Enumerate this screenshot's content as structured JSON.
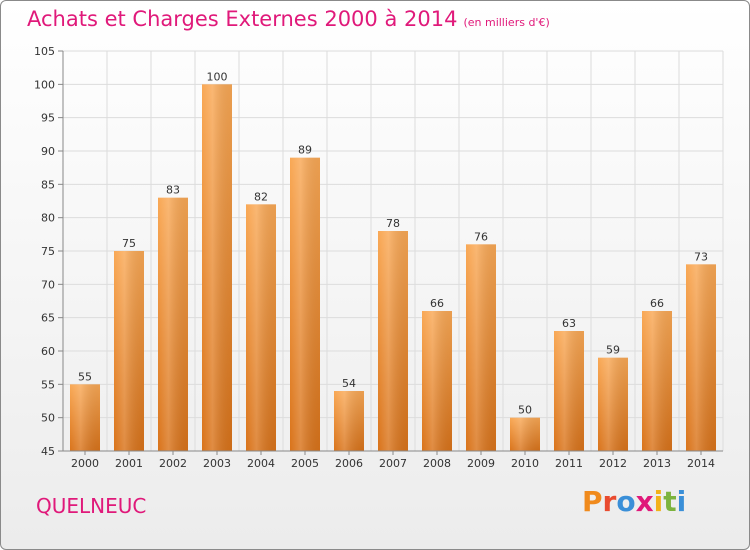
{
  "header": {
    "title": "Achats et Charges Externes 2000 à 2014",
    "subtitle": "(en milliers d'€)"
  },
  "footer": {
    "commune": "QUELNEUC",
    "logo_text": "Proxiti",
    "logo_colors": [
      "#f08a1c",
      "#e94b2f",
      "#3a8fd8",
      "#e0197a",
      "#f2b21a",
      "#7cb33e",
      "#3a8fd8"
    ]
  },
  "colors": {
    "bar_light": "#f9a855",
    "bar_dark": "#d9731a",
    "grid": "#dcdcdc",
    "axis": "#888888",
    "text": "#333333",
    "accent": "#e0197a"
  },
  "chart_data": {
    "type": "bar",
    "categories": [
      "2000",
      "2001",
      "2002",
      "2003",
      "2004",
      "2005",
      "2006",
      "2007",
      "2008",
      "2009",
      "2010",
      "2011",
      "2012",
      "2013",
      "2014"
    ],
    "values": [
      55,
      75,
      83,
      100,
      82,
      89,
      54,
      78,
      66,
      76,
      50,
      63,
      59,
      66,
      73
    ],
    "ylim": [
      45,
      105
    ],
    "yticks": [
      45,
      50,
      55,
      60,
      65,
      70,
      75,
      80,
      85,
      90,
      95,
      100,
      105
    ],
    "grid": true,
    "data_labels": true
  }
}
